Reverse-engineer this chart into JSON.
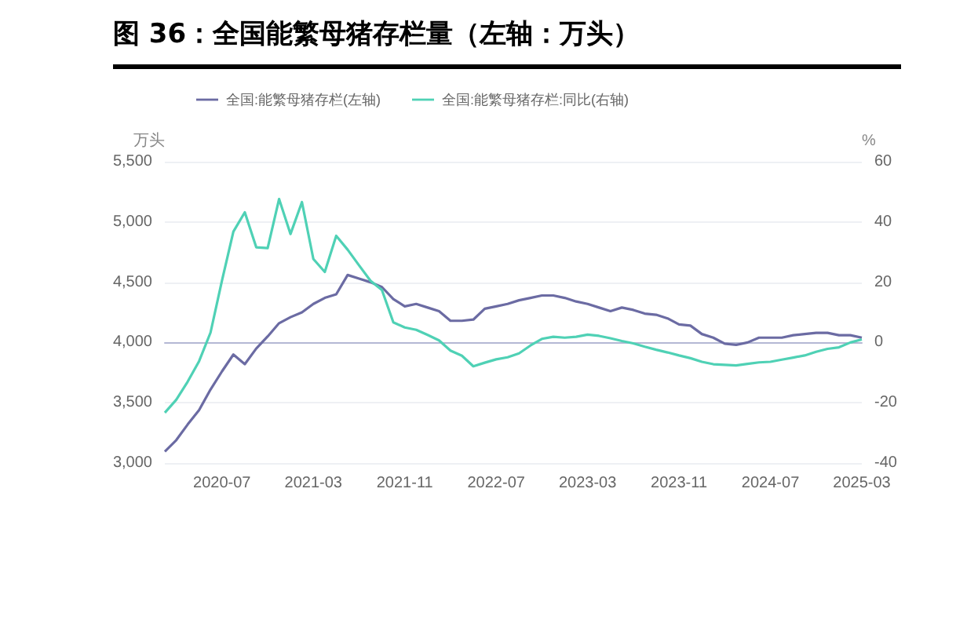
{
  "chart_data": {
    "type": "line",
    "title": "图 36：全国能繁母猪存栏量（左轴：万头）",
    "ylabel": "万头",
    "y2label": "%",
    "categories": [
      null,
      null,
      null,
      null,
      null,
      "2020-07",
      null,
      null,
      null,
      null,
      null,
      null,
      null,
      "2021-03",
      null,
      null,
      null,
      null,
      null,
      null,
      null,
      "2021-11",
      null,
      null,
      null,
      null,
      null,
      null,
      null,
      "2022-07",
      null,
      null,
      null,
      null,
      null,
      null,
      null,
      "2023-03",
      null,
      null,
      null,
      null,
      null,
      null,
      null,
      "2023-11",
      null,
      null,
      null,
      null,
      null,
      null,
      null,
      "2024-07",
      null,
      null,
      null,
      null,
      null,
      null,
      null,
      "2025-03"
    ],
    "series": [
      {
        "name": "全国:能繁母猪存栏(左轴)",
        "color": "#6b6ba3",
        "values": [
          3095,
          3190,
          3320,
          3440,
          3610,
          3760,
          3900,
          3820,
          3950,
          4050,
          4160,
          4210,
          4250,
          4320,
          4370,
          4400,
          4560,
          4530,
          4500,
          4460,
          4360,
          4300,
          4320,
          4290,
          4260,
          4180,
          4180,
          4190,
          4280,
          4300,
          4320,
          4350,
          4370,
          4390,
          4390,
          4370,
          4340,
          4320,
          4290,
          4260,
          4290,
          4270,
          4240,
          4230,
          4200,
          4150,
          4140,
          4070,
          4040,
          3990,
          3980,
          4000,
          4040,
          4040,
          4040,
          4060,
          4070,
          4080,
          4080,
          4060,
          4060,
          4040
        ]
      },
      {
        "name": "全国:能繁母猪存栏:同比(右轴)",
        "color": "#4fd1b5",
        "axis": "y2",
        "values": [
          -23.3,
          -19,
          -13,
          -6.2,
          3.3,
          20.5,
          36.8,
          43.2,
          31.6,
          31.3,
          47.6,
          36,
          46.6,
          27.7,
          23.4,
          35.4,
          30.8,
          25.6,
          20.5,
          17.4,
          6.7,
          5,
          4.2,
          2.5,
          0.7,
          -2.7,
          -4.4,
          -7.9,
          -6.7,
          -5.6,
          -4.9,
          -3.6,
          -1,
          1.2,
          1.9,
          1.6,
          1.9,
          2.6,
          2.2,
          1.4,
          0.5,
          -0.3,
          -1.4,
          -2.4,
          -3.3,
          -4.3,
          -5.2,
          -6.4,
          -7.2,
          -7.4,
          -7.6,
          -7.1,
          -6.6,
          -6.4,
          -5.7,
          -5,
          -4.3,
          -3.1,
          -2.1,
          -1.6,
          0,
          1
        ]
      }
    ],
    "ylim": [
      3000,
      5500
    ],
    "yticks": [
      {
        "value": 3000,
        "label": "3,000"
      },
      {
        "value": 3500,
        "label": "3,500"
      },
      {
        "value": 4000,
        "label": "4,000"
      },
      {
        "value": 4500,
        "label": "4,500"
      },
      {
        "value": 5000,
        "label": "5,000"
      },
      {
        "value": 5500,
        "label": "5,500"
      }
    ],
    "y2lim": [
      -40,
      60
    ],
    "y2ticks": [
      -40,
      -20,
      0,
      20,
      40,
      60
    ],
    "grid": "y",
    "legend": "top left",
    "marker": "none",
    "line_style": "solid"
  }
}
